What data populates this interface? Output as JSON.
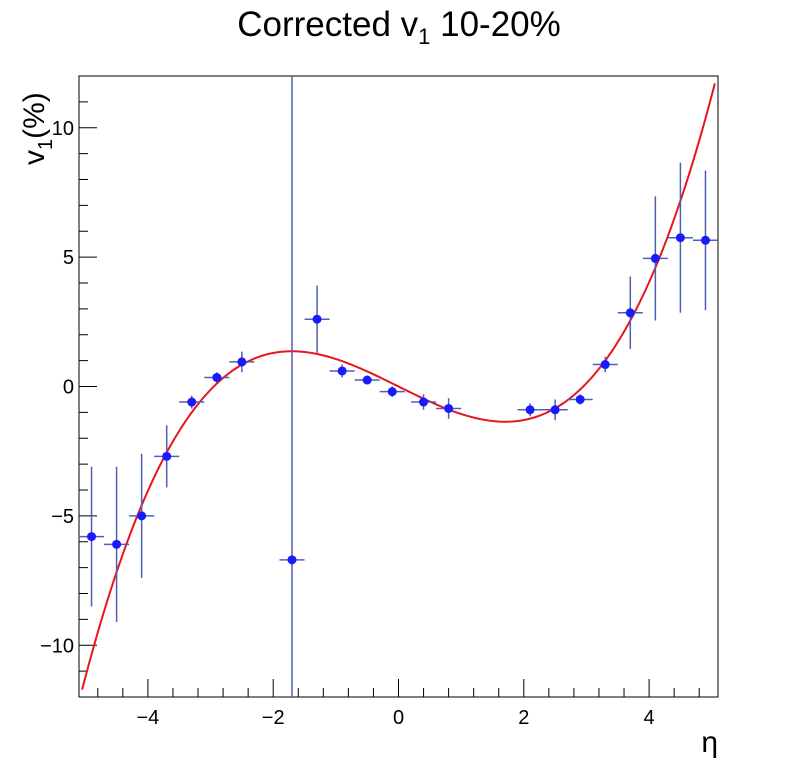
{
  "chart_data": {
    "type": "scatter",
    "title": "Corrected v₁ 10-20%",
    "title_parts": {
      "main": "Corrected v",
      "sub": "1",
      "rest": " 10-20%"
    },
    "xlabel": "η",
    "ylabel": {
      "main": "v",
      "sub": "1",
      "rest": "(%)"
    },
    "xlim": [
      -5.1,
      5.1
    ],
    "ylim": [
      -12,
      12
    ],
    "x_ticks": [
      -4,
      -2,
      0,
      2,
      4
    ],
    "x_tick_labels": [
      "−4",
      "−2",
      "0",
      "2",
      "4"
    ],
    "y_ticks": [
      -10,
      -5,
      0,
      5,
      10
    ],
    "y_tick_labels": [
      "−10",
      "−5",
      "0",
      "5",
      "10"
    ],
    "grid": false,
    "colors": {
      "points": "#1a1aff",
      "error_bars": "#5060b0",
      "fit_curve": "#e8141e",
      "frame": "#000000"
    },
    "series": [
      {
        "kind": "points_with_errors",
        "x": [
          -4.9,
          -4.5,
          -4.1,
          -3.7,
          -3.3,
          -2.9,
          -2.5,
          -1.7,
          -1.3,
          -0.9,
          -0.5,
          -0.1,
          0.4,
          0.8,
          2.1,
          2.5,
          2.9,
          3.3,
          3.7,
          4.1,
          4.5,
          4.9
        ],
        "y": [
          -5.8,
          -6.1,
          -5.0,
          -2.7,
          -0.6,
          0.35,
          0.95,
          -6.7,
          2.6,
          0.6,
          0.25,
          -0.2,
          -0.6,
          -0.85,
          -0.9,
          -0.9,
          -0.5,
          0.85,
          2.85,
          4.95,
          5.75,
          5.65
        ],
        "xerr": 0.2,
        "yerr": [
          2.7,
          3.0,
          2.4,
          1.2,
          0.25,
          0.2,
          0.4,
          27.0,
          1.3,
          0.25,
          0.15,
          0.2,
          0.3,
          0.4,
          0.25,
          0.4,
          0.2,
          0.3,
          1.4,
          2.4,
          2.9,
          2.7
        ]
      },
      {
        "kind": "fit_curve",
        "function": "v1 = a*eta + b*eta^3",
        "params": {
          "a": -1.2,
          "b": 0.138
        },
        "x_range": [
          -5.05,
          5.05
        ]
      }
    ]
  }
}
